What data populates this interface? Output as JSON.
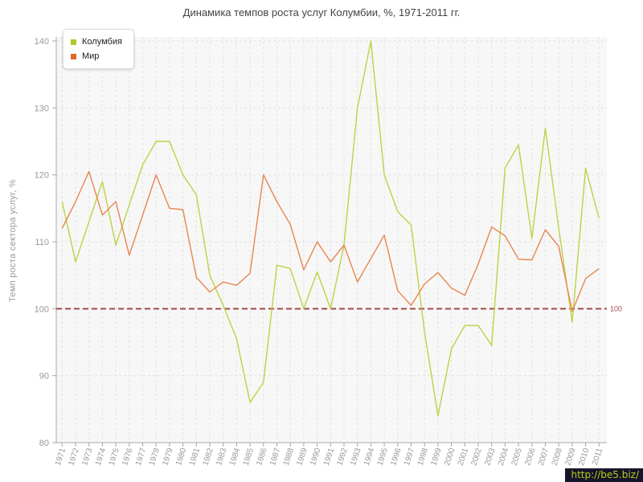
{
  "watermark": {
    "text": "http://be5.biz/",
    "bg": "#14142b",
    "fg": "#b9cc10"
  },
  "colors": {
    "plot_bg": "#f7f7f7",
    "gridline": "#e2e2e2",
    "axis": "#a8a8a8",
    "tick_text": "#999999",
    "title_text": "#444444"
  },
  "chart_data": {
    "type": "line",
    "title": "Динамика темпов роста услуг Колумбии, %, 1971-2011 гг.",
    "xlabel": "",
    "ylabel": "Темп роста сектора услуг, %",
    "ylim": [
      80,
      140
    ],
    "yticks": [
      80,
      90,
      100,
      110,
      120,
      130,
      140
    ],
    "grid": "dashed",
    "legend_position": "top-left",
    "ref_line": {
      "value": 100,
      "label": "100",
      "color": "#a34a4a"
    },
    "x": [
      1971,
      1972,
      1973,
      1974,
      1975,
      1976,
      1977,
      1978,
      1979,
      1980,
      1981,
      1982,
      1983,
      1984,
      1985,
      1986,
      1987,
      1988,
      1989,
      1990,
      1991,
      1992,
      1993,
      1994,
      1995,
      1996,
      1997,
      1998,
      1999,
      2000,
      2001,
      2002,
      2003,
      2004,
      2005,
      2006,
      2007,
      2008,
      2009,
      2010,
      2011
    ],
    "series": [
      {
        "name": "Колумбия",
        "color": "#bdd244",
        "swatch": "#a9c92f",
        "values": [
          116,
          107,
          113,
          119,
          109.5,
          115.5,
          121.5,
          125,
          125,
          120,
          117,
          105,
          100.5,
          95.5,
          86,
          89,
          106.5,
          106,
          100,
          105.5,
          100,
          109.5,
          130,
          140,
          120,
          114.5,
          112.5,
          96.5,
          84,
          94,
          97.5,
          97.5,
          94.5,
          121,
          124.5,
          110.5,
          127,
          112,
          98,
          121,
          113.5
        ]
      },
      {
        "name": "Мир",
        "color": "#e8854f",
        "swatch": "#e0662b",
        "values": [
          112,
          116,
          120.5,
          114,
          116,
          108,
          114,
          120,
          115,
          114.8,
          104.7,
          102.5,
          104,
          103.5,
          105.3,
          120,
          116,
          112.6,
          105.8,
          110,
          107,
          109.5,
          104,
          107.5,
          111,
          102.7,
          100.5,
          103.7,
          105.4,
          103.1,
          102,
          106.7,
          112.2,
          110.9,
          107.4,
          107.3,
          111.8,
          109.3,
          99.6,
          104.5,
          106
        ]
      }
    ]
  }
}
